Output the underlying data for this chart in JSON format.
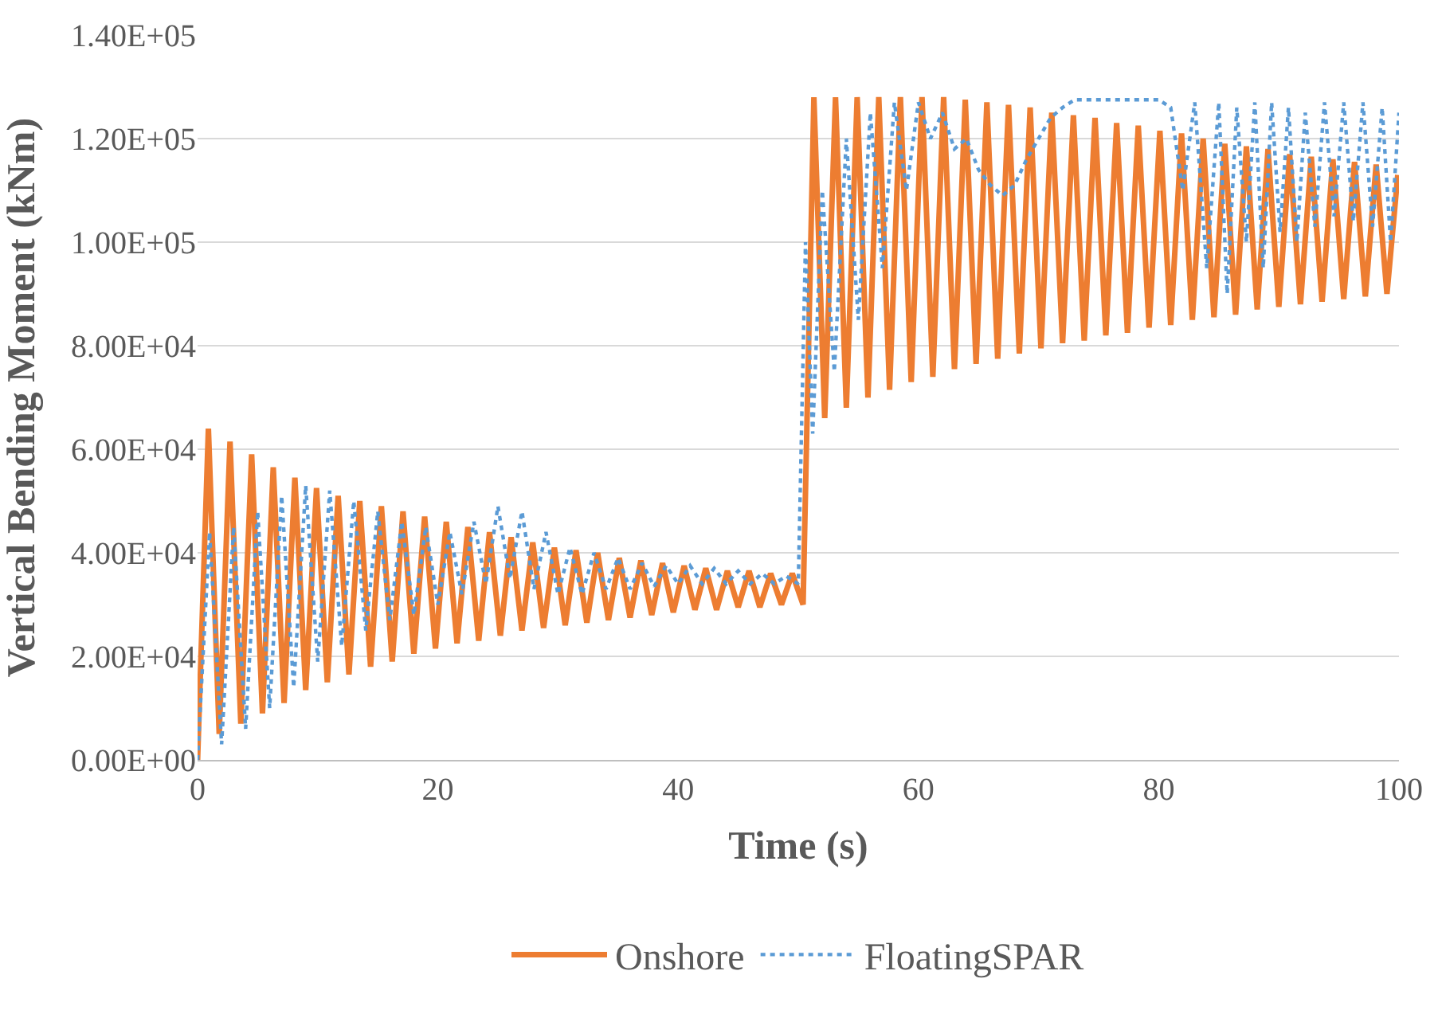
{
  "chart_data": {
    "type": "line",
    "xlabel": "Time (s)",
    "ylabel": "Vertical Bending Moment (kNm)",
    "xlim": [
      0,
      100
    ],
    "xticks": [
      0,
      20,
      40,
      60,
      80,
      100
    ],
    "ylim": [
      0,
      140000
    ],
    "yticks": [
      {
        "value": 0,
        "label": "0.00E+00"
      },
      {
        "value": 20000,
        "label": "2.00E+04"
      },
      {
        "value": 40000,
        "label": "4.00E+04"
      },
      {
        "value": 60000,
        "label": "6.00E+04"
      },
      {
        "value": 80000,
        "label": "8.00E+04"
      },
      {
        "value": 100000,
        "label": "1.00E+05"
      },
      {
        "value": 120000,
        "label": "1.20E+05"
      },
      {
        "value": 140000,
        "label": "1.40E+05"
      }
    ],
    "grid": "y",
    "legend": "bottom",
    "marker": "none",
    "series": [
      {
        "name": "Onshore",
        "color": "#ed7d31",
        "line_style": "solid",
        "x": [
          0,
          0.9,
          1.8,
          2.7,
          3.6,
          4.5,
          5.4,
          6.3,
          7.2,
          8.1,
          9.0,
          9.9,
          10.8,
          11.7,
          12.6,
          13.5,
          14.4,
          15.3,
          16.2,
          17.1,
          18.0,
          18.9,
          19.8,
          20.7,
          21.6,
          22.5,
          23.4,
          24.3,
          25.2,
          26.1,
          27.0,
          27.9,
          28.8,
          29.7,
          30.6,
          31.5,
          32.4,
          33.3,
          34.2,
          35.1,
          36.0,
          36.9,
          37.8,
          38.7,
          39.6,
          40.5,
          41.4,
          42.3,
          43.2,
          44.1,
          45.0,
          45.9,
          46.8,
          47.7,
          48.6,
          49.5,
          50.4,
          51.3,
          52.2,
          53.1,
          54.0,
          54.9,
          55.8,
          56.7,
          57.6,
          58.5,
          59.4,
          60.3,
          61.2,
          62.1,
          63.0,
          63.9,
          64.8,
          65.7,
          66.6,
          67.5,
          68.4,
          69.3,
          70.2,
          71.1,
          72.0,
          72.9,
          73.8,
          74.7,
          75.6,
          76.5,
          77.4,
          78.3,
          79.2,
          80.1,
          81.0,
          81.9,
          82.8,
          83.7,
          84.6,
          85.5,
          86.4,
          87.3,
          88.2,
          89.1,
          90.0,
          90.9,
          91.8,
          92.7,
          93.6,
          94.5,
          95.4,
          96.3,
          97.2,
          98.1,
          99.0,
          99.9
        ],
        "values": [
          0,
          64000,
          5000,
          61500,
          7000,
          59000,
          9000,
          56500,
          11000,
          54500,
          13500,
          52500,
          15000,
          51000,
          16500,
          50000,
          18000,
          49000,
          19000,
          48000,
          20500,
          47000,
          21500,
          46000,
          22500,
          45000,
          23000,
          44000,
          24000,
          43000,
          25000,
          42000,
          25500,
          41000,
          26000,
          40500,
          26500,
          40000,
          27000,
          39000,
          27500,
          38500,
          28000,
          38000,
          28500,
          37500,
          29000,
          37000,
          29000,
          36500,
          29500,
          36500,
          29500,
          36000,
          30000,
          36000,
          30000,
          128000,
          66000,
          128000,
          68000,
          128000,
          70000,
          128000,
          71500,
          128000,
          73000,
          128000,
          74000,
          128000,
          75500,
          127500,
          76500,
          127000,
          77500,
          126500,
          78500,
          126000,
          79500,
          125000,
          80500,
          124500,
          81000,
          124000,
          82000,
          123000,
          82500,
          122500,
          83500,
          121500,
          84000,
          121000,
          85000,
          120000,
          85500,
          119000,
          86000,
          118500,
          87000,
          118000,
          87500,
          117000,
          88000,
          116500,
          88500,
          116000,
          89000,
          115500,
          89500,
          115000,
          90000,
          113000
        ]
      },
      {
        "name": "FloatingSPAR",
        "color": "#5b9bd5",
        "line_style": "dotted",
        "x": [
          0,
          1,
          2,
          3,
          4,
          5,
          6,
          7,
          8,
          9,
          10,
          11,
          12,
          13,
          14,
          15,
          16,
          17,
          18,
          19,
          20,
          21,
          22,
          23,
          24,
          25,
          26,
          27,
          28,
          29,
          30,
          31,
          32,
          33,
          34,
          35,
          36,
          37,
          38,
          39,
          40,
          41,
          42,
          43,
          44,
          45,
          46,
          47,
          48,
          49,
          50,
          50.6,
          51.2,
          52,
          53,
          54,
          55,
          56,
          57,
          58,
          59,
          60,
          61,
          62,
          63,
          64,
          65,
          66,
          67,
          68,
          69,
          70,
          71,
          72,
          73,
          76,
          80,
          81,
          82,
          83,
          84,
          85,
          85.7,
          86.5,
          87.3,
          88,
          88.7,
          89.4,
          90.1,
          90.8,
          91.5,
          92.2,
          93,
          93.8,
          94.6,
          95.4,
          96.2,
          97,
          97.8,
          98.6,
          99.3,
          100
        ],
        "values": [
          0,
          44000,
          3000,
          45000,
          6000,
          48000,
          10000,
          51000,
          14000,
          53000,
          19000,
          52000,
          22000,
          50000,
          25000,
          48000,
          27000,
          46000,
          28000,
          45000,
          30000,
          44000,
          32000,
          46000,
          34000,
          49000,
          35000,
          48000,
          33000,
          44000,
          32000,
          41000,
          32000,
          40000,
          33000,
          39000,
          33000,
          38000,
          33500,
          37500,
          34000,
          37500,
          34000,
          37000,
          34000,
          36500,
          34000,
          36000,
          34000,
          35500,
          34000,
          100000,
          63000,
          110000,
          75000,
          120000,
          85000,
          125000,
          95000,
          127000,
          110000,
          127000,
          120000,
          125000,
          118000,
          120000,
          114000,
          111000,
          109000,
          111000,
          116000,
          120000,
          124000,
          126000,
          127500,
          127500,
          127500,
          126000,
          110000,
          127000,
          95000,
          127000,
          90000,
          126000,
          100000,
          127000,
          95000,
          127000,
          102000,
          126000,
          100000,
          125000,
          103000,
          127000,
          105000,
          127000,
          104000,
          127000,
          103000,
          126000,
          100000,
          125000
        ]
      }
    ]
  }
}
